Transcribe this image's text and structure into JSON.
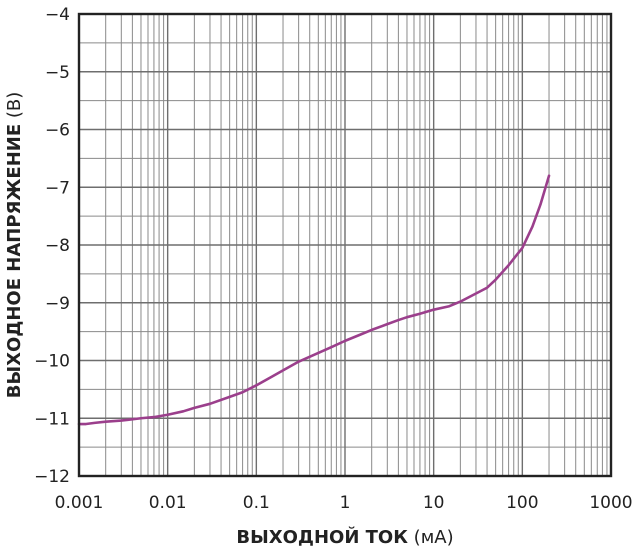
{
  "chart_data": {
    "type": "line",
    "title": "",
    "xlabel_bold": "ВЫХОДНОЙ ТОК",
    "xlabel_unit": " (мА)",
    "ylabel_bold": "ВЫХОДНОЕ НАПРЯЖЕНИЕ",
    "ylabel_unit": " (В)",
    "x_scale": "log",
    "xlim": [
      0.001,
      1000
    ],
    "ylim": [
      -12,
      -4
    ],
    "x_ticks": [
      0.001,
      0.01,
      0.1,
      1,
      10,
      100,
      1000
    ],
    "x_tick_labels": [
      "0.001",
      "0.01",
      "0.1",
      "1",
      "10",
      "100",
      "1000"
    ],
    "y_ticks": [
      -4,
      -5,
      -6,
      -7,
      -8,
      -9,
      -10,
      -11,
      -12
    ],
    "y_tick_labels": [
      "−4",
      "−5",
      "−6",
      "−7",
      "−8",
      "−9",
      "−10",
      "−11",
      "−12"
    ],
    "grid": true,
    "series_color": "#9b3f8c",
    "series": [
      {
        "x": [
          0.001,
          0.0012,
          0.0015,
          0.002,
          0.003,
          0.005,
          0.007,
          0.01,
          0.015,
          0.02,
          0.03,
          0.05,
          0.07,
          0.1,
          0.15,
          0.2,
          0.3,
          0.5,
          0.7,
          1,
          1.5,
          2,
          3,
          4,
          5,
          7,
          10,
          15,
          20,
          30,
          40,
          50,
          70,
          100,
          130,
          160,
          200
        ],
        "y": [
          -11.1,
          -11.1,
          -11.08,
          -11.06,
          -11.04,
          -11.0,
          -10.98,
          -10.94,
          -10.88,
          -10.82,
          -10.75,
          -10.63,
          -10.55,
          -10.43,
          -10.28,
          -10.17,
          -10.02,
          -9.87,
          -9.77,
          -9.66,
          -9.55,
          -9.47,
          -9.37,
          -9.3,
          -9.25,
          -9.19,
          -9.12,
          -9.06,
          -8.98,
          -8.84,
          -8.74,
          -8.6,
          -8.35,
          -8.05,
          -7.68,
          -7.3,
          -6.8
        ]
      }
    ]
  }
}
